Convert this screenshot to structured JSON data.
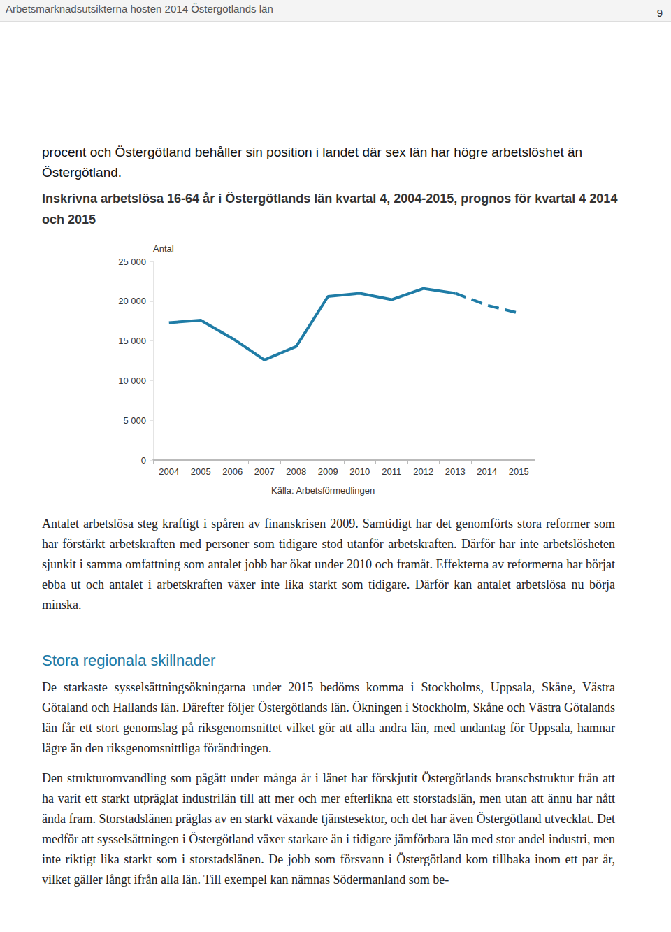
{
  "header": {
    "title": "Arbetsmarknadsutsikterna hösten 2014 Östergötlands län",
    "page": "9"
  },
  "intro": "procent och Östergötland behåller sin position i landet där sex län har högre arbetslöshet än Östergötland.",
  "chart_data": {
    "type": "line",
    "title": "Inskrivna arbetslösa 16-64 år i Östergötlands län kvartal 4, 2004-2015, prognos för kvartal 4 2014 och 2015",
    "ylabel": "Antal",
    "categories": [
      "2004",
      "2005",
      "2006",
      "2007",
      "2008",
      "2009",
      "2010",
      "2011",
      "2012",
      "2013",
      "2014",
      "2015"
    ],
    "series": [
      {
        "color": "#1f7ca6",
        "line_style": "solid",
        "values": [
          17300,
          17600,
          15300,
          12600,
          14300,
          20600,
          21000,
          20200,
          21600,
          21000,
          null,
          null
        ]
      },
      {
        "color": "#1f7ca6",
        "line_style": "dashed",
        "values": [
          null,
          null,
          null,
          null,
          null,
          null,
          null,
          null,
          null,
          21000,
          19500,
          18500
        ]
      }
    ],
    "ylim": [
      0,
      25000
    ],
    "yticks": [
      0,
      {
        "value": 5000,
        "label": "5 000"
      },
      {
        "value": 10000,
        "label": "10 000"
      },
      {
        "value": 15000,
        "label": "15 000"
      },
      {
        "value": 20000,
        "label": "20 000"
      },
      {
        "value": 25000,
        "label": "25 000"
      }
    ],
    "grid": false
  },
  "chart_source": "Källa: Arbetsförmedlingen",
  "after_chart": [
    "Antalet arbetslösa steg kraftigt i spåren av finanskrisen 2009. Samtidigt har det genomförts stora reformer som har förstärkt arbetskraften med personer som tidigare stod utanför arbetskraften. Därför har inte arbetslösheten sjunkit i samma omfattning som antalet jobb har ökat under 2010 och framåt. Effekterna av reformerna har börjat ebba ut och antalet i arbetskraften växer inte lika starkt som tidigare. Därför kan antalet arbetslösa nu börja minska."
  ],
  "section": {
    "heading": "Stora regionala skillnader",
    "paragraphs": [
      "De starkaste sysselsättningsökningarna under 2015 bedöms komma i Stockholms, Uppsala, Skåne, Västra Götaland och Hallands län. Därefter följer Östergötlands län. Ökningen i Stockholm, Skåne och Västra Götalands län får ett stort genomslag på riksgenomsnittet vilket gör att alla andra län, med undantag för Uppsala, hamnar lägre än den riksgenomsnittliga förändringen.",
      "Den strukturomvandling som pågått under många år i länet har förskjutit Östergötlands branschstruktur från att ha varit ett starkt utpräglat industrilän till att mer och mer efterlikna ett storstadslän, men utan att ännu har nått ända fram. Storstadslänen präglas av en starkt växande tjänstesektor, och det har även Östergötland utvecklat. Det medför att sysselsättningen i Östergötland växer starkare än i tidigare jämförbara län med stor andel industri, men inte riktigt lika starkt som i storstadslänen. De jobb som försvann i Östergötland kom tillbaka inom ett par år, vilket gäller långt ifrån alla län. Till exempel kan nämnas Södermanland som be-"
    ]
  }
}
